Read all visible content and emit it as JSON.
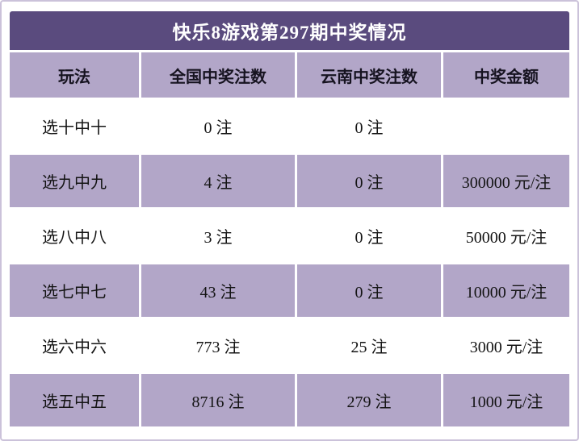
{
  "chart_data": {
    "type": "table",
    "title": "快乐8游戏第297期中奖情况",
    "columns": [
      "玩法",
      "全国中奖注数",
      "云南中奖注数",
      "中奖金额"
    ],
    "rows": [
      [
        "选十中十",
        "0 注",
        "0 注",
        ""
      ],
      [
        "选九中九",
        "4 注",
        "0 注",
        "300000 元/注"
      ],
      [
        "选八中八",
        "3 注",
        "0 注",
        "50000 元/注"
      ],
      [
        "选七中七",
        "43 注",
        "0 注",
        "10000 元/注"
      ],
      [
        "选六中六",
        "773 注",
        "25 注",
        "3000 元/注"
      ],
      [
        "选五中五",
        "8716 注",
        "279 注",
        "1000 元/注"
      ]
    ],
    "layout": {
      "row_striping": [
        "white",
        "band",
        "white",
        "band",
        "white",
        "band"
      ],
      "alignment": "center"
    }
  },
  "colors": {
    "title_bg": "#5a4b7e",
    "title_text": "#ffffff",
    "band_bg": "#b2a6c8",
    "frame_border": "#cbc2da",
    "cell_text": "#141414"
  }
}
